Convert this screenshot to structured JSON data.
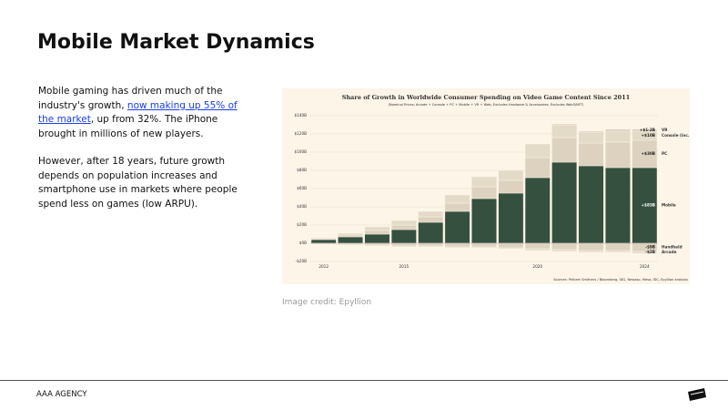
{
  "header": {
    "title": "Mobile Market Dynamics"
  },
  "body": {
    "paragraphs": [
      {
        "text_before": "Mobile gaming has driven much of the industry's growth, ",
        "link": "now making up 55% of the market",
        "text_after": ", up from 32%. The iPhone brought in millions of new players."
      },
      {
        "text": "However, after 18 years, future growth depends on population increases and smartphone use in markets where people spend less on games (low ARPU)."
      }
    ]
  },
  "chart_data": {
    "type": "bar",
    "stacked": true,
    "title": "Share of Growth in Worldwide Consumer Spending on Video Game Content Since 2011",
    "subtitle": "(Nominal Prices; Arcade + Console + PC + Mobile + VR + Web; Excludes Hardware & Accessories; Excludes Web3/NFT)",
    "source": "Sources: Pelham Smithers / Bloomberg, IDG, Newzoo, Mesa, IDC, Epyllion analysis",
    "categories": [
      "2012",
      null,
      null,
      "2015",
      null,
      null,
      null,
      null,
      "2020",
      null,
      null,
      null,
      "2024"
    ],
    "series": [
      {
        "name": "Mobile",
        "color": "#35503f",
        "values": [
          4,
          7,
          10,
          15,
          23,
          35,
          49,
          55,
          72,
          89,
          85,
          83,
          83
        ],
        "value_labels": [
          null,
          null,
          null,
          null,
          null,
          null,
          null,
          null,
          null,
          null,
          null,
          null,
          "+$83B"
        ]
      },
      {
        "name": "PC",
        "color": "#ddd2bf",
        "values": [
          1,
          2,
          4,
          5,
          6,
          9,
          13,
          14,
          22,
          27,
          25,
          28,
          30
        ],
        "value_labels": [
          null,
          null,
          null,
          null,
          null,
          null,
          null,
          null,
          null,
          null,
          null,
          null,
          "+$30B"
        ]
      },
      {
        "name": "Console (inc. Switch)",
        "color": "#e4dac8",
        "values": [
          1,
          2,
          4,
          5,
          6,
          9,
          11,
          11,
          15,
          14,
          12,
          12,
          10
        ],
        "value_labels": [
          null,
          null,
          null,
          null,
          null,
          null,
          null,
          null,
          null,
          null,
          null,
          null,
          "+$10B"
        ]
      },
      {
        "name": "VR",
        "color": "#d6cbb7",
        "values": [
          0,
          0,
          0,
          0,
          0,
          0,
          0,
          0,
          0,
          1,
          1,
          2,
          2
        ],
        "value_labels": [
          null,
          null,
          null,
          null,
          null,
          null,
          null,
          null,
          null,
          null,
          null,
          null,
          "+$1-2B"
        ]
      },
      {
        "name": "Handheld",
        "color": "#ddd2bf",
        "values": [
          0,
          -1,
          -2,
          -3,
          -3,
          -4,
          -4,
          -5,
          -6,
          -7,
          -8,
          -8,
          -9
        ],
        "value_labels": [
          null,
          null,
          null,
          null,
          null,
          null,
          null,
          null,
          null,
          null,
          null,
          null,
          "-$9B"
        ]
      },
      {
        "name": "Arcade",
        "color": "#e6dccb",
        "values": [
          -1,
          -1,
          -1,
          -1,
          -1,
          -1,
          -1,
          -1,
          -2,
          -2,
          -2,
          -2,
          -2
        ],
        "value_labels": [
          null,
          null,
          null,
          null,
          null,
          null,
          null,
          null,
          null,
          null,
          null,
          null,
          "-$2B"
        ]
      }
    ],
    "ylim": [
      -20,
      140
    ],
    "yticks": [
      {
        "value": -20,
        "label": "-$20B"
      },
      {
        "value": 0,
        "label": "$0B"
      },
      {
        "value": 20,
        "label": "$20B"
      },
      {
        "value": 40,
        "label": "$40B"
      },
      {
        "value": 60,
        "label": "$60B"
      },
      {
        "value": 80,
        "label": "$80B"
      },
      {
        "value": 100,
        "label": "$100B"
      },
      {
        "value": 120,
        "label": "$120B"
      },
      {
        "value": 140,
        "label": "$140B"
      }
    ],
    "grid": true
  },
  "image_credit": "Image credit: Epyllion",
  "footer": {
    "brand": "AAA AGENCY"
  }
}
